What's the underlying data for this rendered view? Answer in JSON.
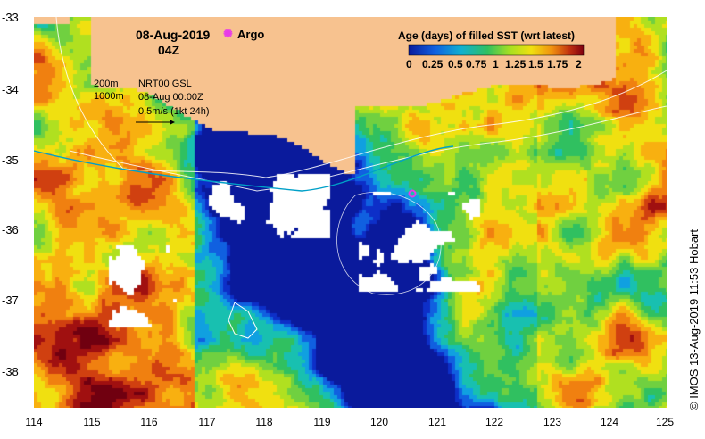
{
  "map": {
    "date": "08-Aug-2019",
    "time": "04Z",
    "argo_label": "Argo",
    "legend_title": "Age (days) of filled SST (wrt latest)",
    "legend_ticks": [
      "0",
      "0.25",
      "0.5",
      "0.75",
      "1",
      "1.25",
      "1.5",
      "1.75",
      "2"
    ],
    "isobath_shallow": "200m",
    "isobath_deep": "1000m",
    "current_source": "NRT00 GSL",
    "current_time": "08-Aug 00:00Z",
    "current_scale": "0.5m/s (1kt 24h)",
    "credit": "© IMOS 13-Aug-2019 11:53 Hobart",
    "colors": {
      "land": "#f7c28f",
      "ocean_deep": "#0a1a9c",
      "argo": "#e83ae8",
      "cloud": "#ffffff"
    },
    "lat_ticks": [
      "-33",
      "-34",
      "-35",
      "-36",
      "-37",
      "-38"
    ],
    "lon_ticks": [
      "114",
      "115",
      "116",
      "117",
      "118",
      "119",
      "120",
      "121",
      "122",
      "123",
      "124",
      "125"
    ],
    "lon_range": [
      114,
      125
    ],
    "lat_range": [
      -38.5,
      -33
    ]
  }
}
